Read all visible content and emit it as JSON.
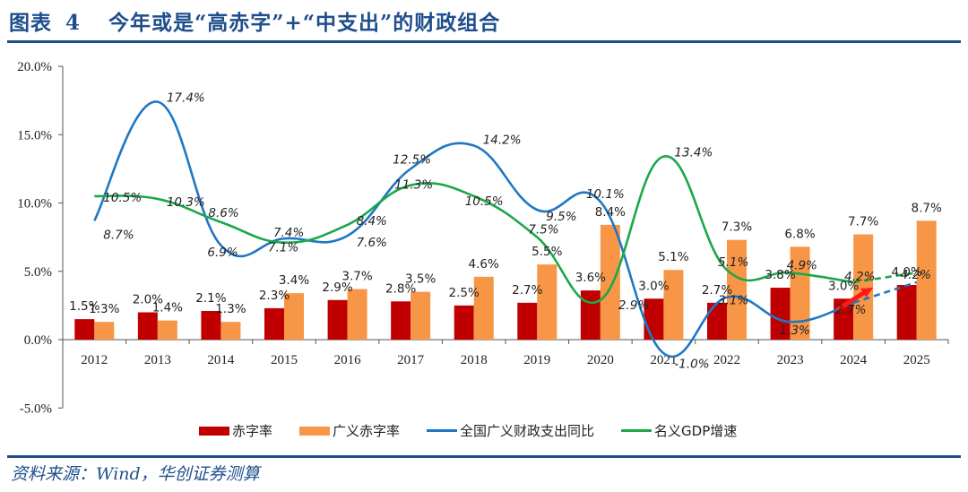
{
  "header": {
    "figure_label": "图表",
    "figure_number": "4",
    "title": "今年或是“高赤字”+“中支出”的财政组合"
  },
  "footer": {
    "source": "资料来源：Wind，华创证券测算"
  },
  "colors": {
    "deficit": "#c00000",
    "broad_deficit": "#f79646",
    "expenditure": "#1f77c4",
    "gdp": "#1aa84a",
    "arrow": "#ff1a1a",
    "title": "#1f4e8c"
  },
  "chart_data": {
    "type": "bar+line",
    "title": "今年或是“高赤字”+“中支出”的财政组合",
    "xlabel": "",
    "ylabel": "",
    "categories": [
      "2012",
      "2013",
      "2014",
      "2015",
      "2016",
      "2017",
      "2018",
      "2019",
      "2020",
      "2021",
      "2022",
      "2023",
      "2024",
      "2025"
    ],
    "ylim": [
      -5,
      20
    ],
    "yticks": [
      -5,
      0,
      5,
      10,
      15,
      20
    ],
    "ytick_labels": [
      "-5.0%",
      "0.0%",
      "5.0%",
      "10.0%",
      "15.0%",
      "20.0%"
    ],
    "grid": false,
    "legend_position": "bottom",
    "series": [
      {
        "name": "赤字率",
        "type": "bar",
        "values": [
          1.5,
          2.0,
          2.1,
          2.3,
          2.9,
          2.8,
          2.5,
          2.7,
          3.6,
          3.0,
          2.7,
          3.8,
          3.0,
          4.0
        ],
        "labels": [
          "1.5%",
          "2.0%",
          "2.1%",
          "2.3%",
          "2.9%",
          "2.8%",
          "2.5%",
          "2.7%",
          "3.6%",
          "3.0%",
          "2.7%",
          "3.8%",
          "3.0%",
          "4.0%"
        ]
      },
      {
        "name": "广义赤字率",
        "type": "bar",
        "values": [
          1.3,
          1.4,
          1.3,
          3.4,
          3.7,
          3.5,
          4.6,
          5.5,
          8.4,
          5.1,
          7.3,
          6.8,
          7.7,
          8.7
        ],
        "labels": [
          "1.3%",
          "1.4%",
          "1.3%",
          "3.4%",
          "3.7%",
          "3.5%",
          "4.6%",
          "5.5%",
          "8.4%",
          "5.1%",
          "7.3%",
          "6.8%",
          "7.7%",
          "8.7%"
        ]
      },
      {
        "name": "全国广义财政支出同比",
        "type": "line",
        "smooth": true,
        "dashed_from_index": 12,
        "values": [
          8.7,
          17.4,
          6.9,
          7.4,
          7.6,
          12.5,
          14.2,
          9.5,
          10.1,
          -1.0,
          3.1,
          1.3,
          2.7,
          4.2
        ],
        "labels": [
          "8.7%",
          "17.4%",
          "6.9%",
          "7.4%",
          "7.6%",
          "12.5%",
          "14.2%",
          "9.5%",
          "10.1%",
          "-1.0%",
          "3.1%",
          "1.3%",
          "2.7%",
          "4.2%"
        ]
      },
      {
        "name": "名义GDP增速",
        "type": "line",
        "smooth": true,
        "dashed_from_index": 12,
        "values": [
          10.5,
          10.3,
          8.6,
          7.1,
          8.4,
          11.3,
          10.5,
          7.5,
          2.9,
          13.4,
          5.1,
          4.9,
          4.2,
          4.9
        ],
        "labels": [
          "10.5%",
          "10.3%",
          "8.6%",
          "7.1%",
          "8.4%",
          "11.3%",
          "10.5%",
          "7.5%",
          "2.9%",
          "13.4%",
          "5.1%",
          "4.9%",
          "4.2%",
          ""
        ]
      }
    ],
    "annotations": [
      "red arrow from 2024 to 2025 indicating rising expenditure growth"
    ]
  },
  "legend": [
    {
      "label": "赤字率",
      "kind": "bar",
      "key": "deficit"
    },
    {
      "label": "广义赤字率",
      "kind": "bar",
      "key": "broad_deficit"
    },
    {
      "label": "全国广义财政支出同比",
      "kind": "line",
      "key": "expenditure"
    },
    {
      "label": "名义GDP增速",
      "kind": "line",
      "key": "gdp"
    }
  ]
}
